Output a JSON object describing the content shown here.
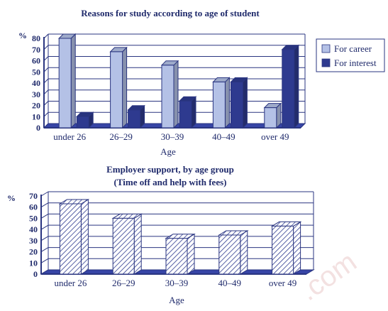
{
  "chart_data": [
    {
      "type": "bar",
      "title": "Reasons for study according to age of student",
      "xlabel": "Age",
      "ylabel": "%",
      "ylim": [
        0,
        80
      ],
      "yticks": [
        "0",
        "10",
        "20",
        "30",
        "40",
        "50",
        "60",
        "70",
        "80"
      ],
      "categories": [
        "under 26",
        "26–29",
        "30–39",
        "40–49",
        "over 49"
      ],
      "series": [
        {
          "name": "For career",
          "values": [
            80,
            68,
            56,
            41,
            18
          ]
        },
        {
          "name": "For interest",
          "values": [
            10,
            16,
            24,
            41,
            70
          ]
        }
      ],
      "legend": "right",
      "grid": true,
      "colors": {
        "career": "#b4c1e6",
        "interest": "#2e3a8f",
        "axis": "#2a3580"
      }
    },
    {
      "type": "bar",
      "title": "Employer support, by age group",
      "subtitle": "(Time off and help with fees)",
      "xlabel": "Age",
      "ylabel": "%",
      "ylim": [
        0,
        70
      ],
      "yticks": [
        "0",
        "10",
        "20",
        "30",
        "40",
        "50",
        "60",
        "70"
      ],
      "categories": [
        "under 26",
        "26–29",
        "30–39",
        "40–49",
        "over 49"
      ],
      "values": [
        63,
        50,
        32,
        35,
        43
      ],
      "grid": true,
      "colors": {
        "bar": "#ffffff",
        "hatch": "#2e3a8f",
        "axis": "#2a3580"
      }
    }
  ],
  "watermark": ".com"
}
